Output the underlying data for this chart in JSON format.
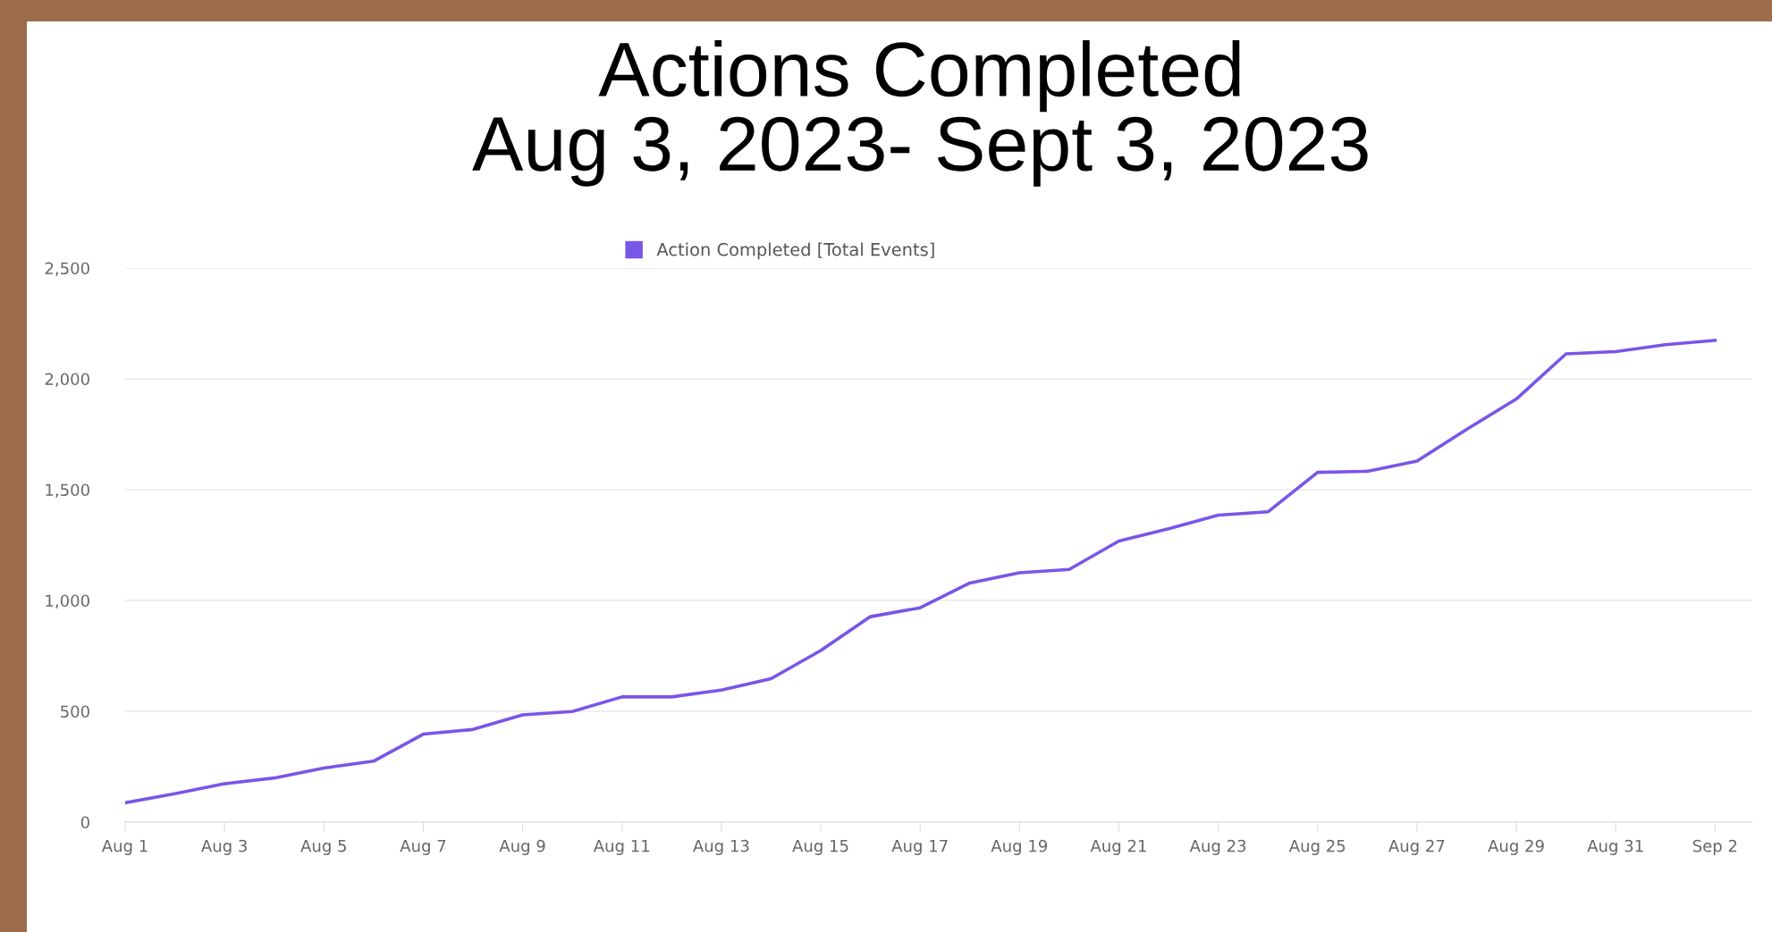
{
  "chart_data": {
    "type": "line",
    "title": "Actions Completed\nAug 3, 2023- Sept 3, 2023",
    "categories": [
      "Aug 1",
      null,
      "Aug 3",
      null,
      "Aug 5",
      null,
      "Aug 7",
      null,
      "Aug 9",
      null,
      "Aug 11",
      null,
      "Aug 13",
      null,
      "Aug 15",
      null,
      "Aug 17",
      null,
      "Aug 19",
      null,
      "Aug 21",
      null,
      "Aug 23",
      null,
      "Aug 25",
      null,
      "Aug 27",
      null,
      "Aug 29",
      null,
      "Aug 31",
      null,
      "Sep 2"
    ],
    "series": [
      {
        "name": "Action Completed [Total Events]",
        "color": "#7856e8",
        "values": [
          87,
          128,
          173,
          199,
          244,
          275,
          397,
          418,
          484,
          499,
          565,
          565,
          596,
          647,
          774,
          927,
          967,
          1079,
          1125,
          1140,
          1268,
          1324,
          1385,
          1400,
          1578,
          1583,
          1629,
          1772,
          1909,
          2113,
          2123,
          2154,
          2174
        ]
      }
    ],
    "ylim": [
      0,
      2500
    ],
    "yticks": [
      {
        "value": 0,
        "label": "0"
      },
      {
        "value": 500,
        "label": "500"
      },
      {
        "value": 1000,
        "label": "1,000"
      },
      {
        "value": 1500,
        "label": "1,500"
      },
      {
        "value": 2000,
        "label": "2,000"
      },
      {
        "value": 2500,
        "label": "2,500"
      }
    ],
    "grid": "y",
    "legend": "top",
    "marker": "none",
    "line_style": "solid"
  }
}
